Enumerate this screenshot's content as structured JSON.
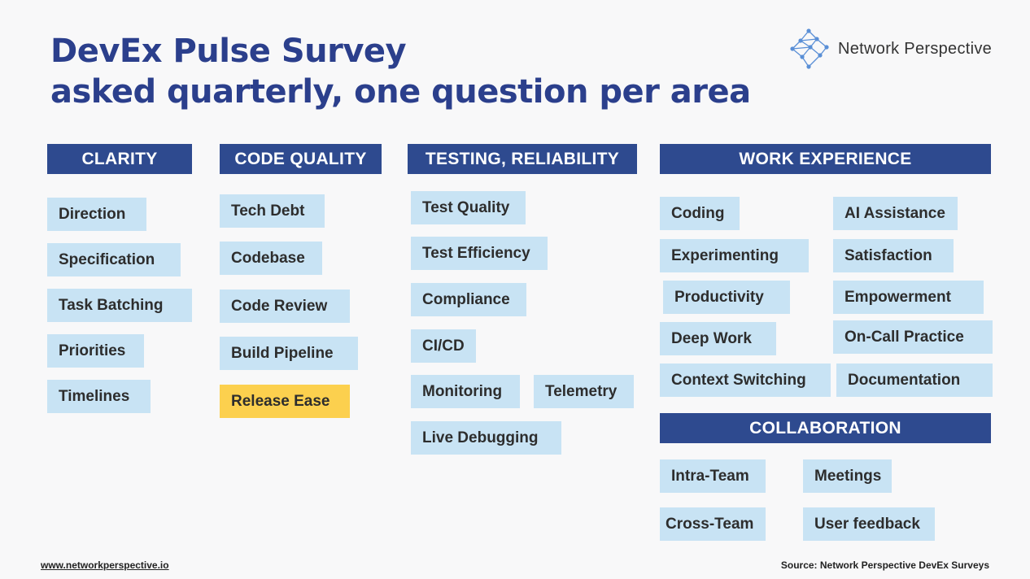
{
  "title": {
    "line1": "DevEx Pulse Survey",
    "line2": "asked quarterly, one question per area"
  },
  "logo": {
    "text": "Network Perspective",
    "icon": "network-graph-icon",
    "color": "#5a8fd6"
  },
  "colors": {
    "title": "#2b3f8c",
    "header_bg": "#2e4a8f",
    "chip_bg": "#c8e3f4",
    "highlight_bg": "#fcd04e"
  },
  "columns": {
    "clarity": {
      "header": "CLARITY",
      "items": [
        "Direction",
        "Specification",
        "Task Batching",
        "Priorities",
        "Timelines"
      ]
    },
    "code_quality": {
      "header": "CODE QUALITY",
      "items": [
        "Tech Debt",
        "Codebase",
        "Code Review",
        "Build Pipeline",
        "Release Ease"
      ],
      "highlighted": "Release Ease"
    },
    "testing": {
      "header": "TESTING, RELIABILITY",
      "items": [
        "Test Quality",
        "Test Efficiency",
        "Compliance",
        "CI/CD",
        "Monitoring",
        "Telemetry",
        "Live Debugging"
      ]
    },
    "work_experience": {
      "header": "WORK EXPERIENCE",
      "items": [
        "Coding",
        "AI Assistance",
        "Experimenting",
        "Satisfaction",
        "Productivity",
        "Empowerment",
        "Deep Work",
        "On-Call Practice",
        "Context Switching",
        "Documentation"
      ]
    },
    "collaboration": {
      "header": "COLLABORATION",
      "items": [
        "Intra-Team",
        "Meetings",
        "Cross-Team",
        "User feedback"
      ]
    }
  },
  "footer": {
    "url": "www.networkperspective.io",
    "source": "Source: Network Perspective DevEx Surveys"
  }
}
